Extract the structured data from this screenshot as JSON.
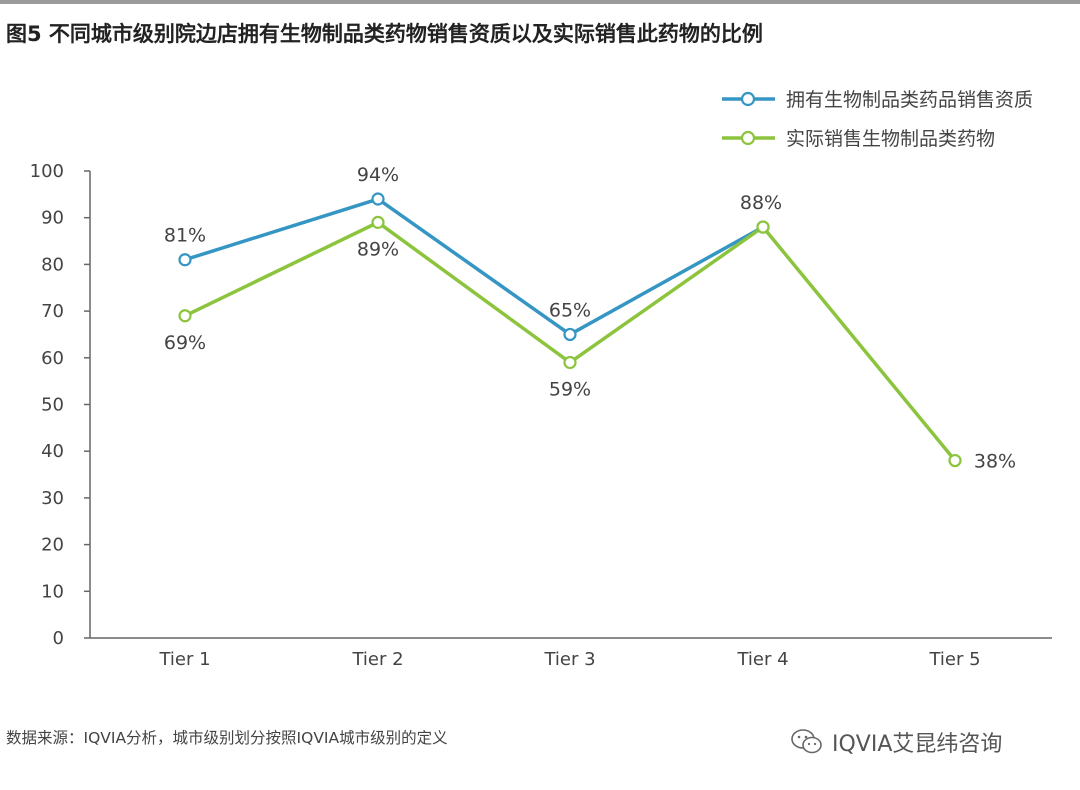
{
  "title": "图5 不同城市级别院边店拥有生物制品类药物销售资质以及实际销售此药物的比例",
  "source": "数据来源：IQVIA分析，城市级别划分按照IQVIA城市级别的定义",
  "watermark": "IQVIA艾昆纬咨询",
  "colors": {
    "series1": "#3596c4",
    "series2": "#8cc43d",
    "axis": "#666666",
    "text": "#444444"
  },
  "chart_data": {
    "type": "line",
    "categories": [
      "Tier 1",
      "Tier 2",
      "Tier 3",
      "Tier 4",
      "Tier 5"
    ],
    "ylim": [
      0,
      100
    ],
    "yticks": [
      0,
      10,
      20,
      30,
      40,
      50,
      60,
      70,
      80,
      90,
      100
    ],
    "grid": false,
    "legend_position": "top-right",
    "series": [
      {
        "name": "拥有生物制品类药品销售资质",
        "values": [
          81,
          94,
          65,
          88,
          null
        ],
        "labels": [
          "81%",
          "94%",
          "65%",
          "88%",
          ""
        ]
      },
      {
        "name": "实际销售生物制品类药物",
        "values": [
          69,
          89,
          59,
          88,
          38
        ],
        "labels": [
          "69%",
          "89%",
          "59%",
          "",
          "38%"
        ]
      }
    ]
  }
}
